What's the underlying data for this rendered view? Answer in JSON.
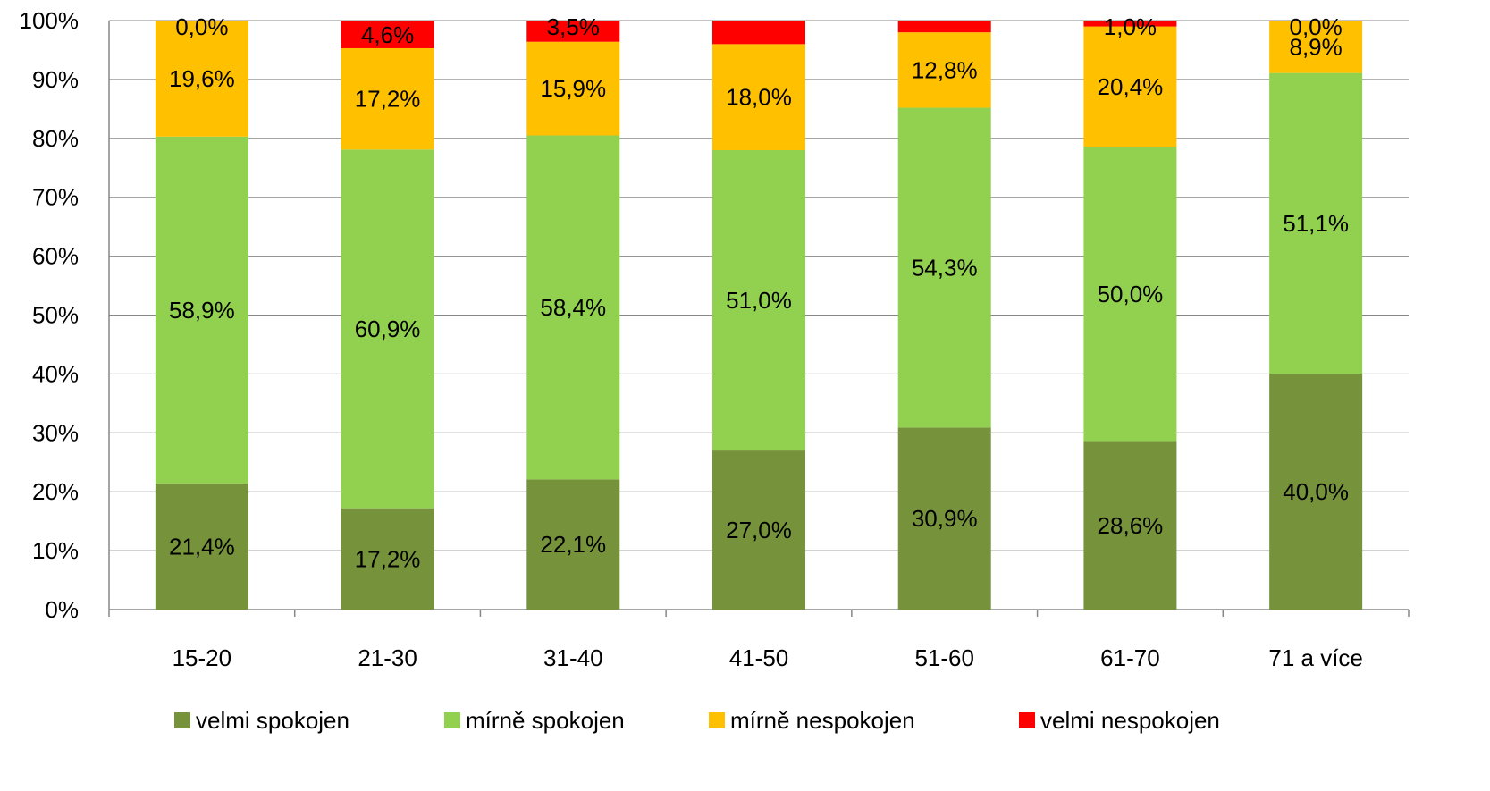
{
  "chart_data": {
    "type": "bar",
    "stacked": true,
    "categories": [
      "15-20",
      "21-30",
      "31-40",
      "41-50",
      "51-60",
      "61-70",
      "71 a více"
    ],
    "series": [
      {
        "name": "velmi spokojen",
        "color": "#76933C",
        "values": [
          21.4,
          17.2,
          22.1,
          27.0,
          30.9,
          28.6,
          40.0
        ],
        "labels": [
          "21,4%",
          "17,2%",
          "22,1%",
          "27,0%",
          "30,9%",
          "28,6%",
          "40,0%"
        ]
      },
      {
        "name": "mírně spokojen",
        "color": "#92D050",
        "values": [
          58.9,
          60.9,
          58.4,
          51.0,
          54.3,
          50.0,
          51.1
        ],
        "labels": [
          "58,9%",
          "60,9%",
          "58,4%",
          "51,0%",
          "54,3%",
          "50,0%",
          "51,1%"
        ]
      },
      {
        "name": "mírně nespokojen",
        "color": "#FFC000",
        "values": [
          19.6,
          17.2,
          15.9,
          18.0,
          12.8,
          20.4,
          8.9
        ],
        "labels": [
          "19,6%",
          "17,2%",
          "15,9%",
          "18,0%",
          "12,8%",
          "20,4%",
          "8,9%"
        ]
      },
      {
        "name": "velmi nespokojen",
        "color": "#FF0000",
        "values": [
          0.0,
          4.6,
          3.5,
          4.0,
          2.1,
          1.0,
          0.0
        ],
        "labels": [
          "0,0%",
          "4,6%",
          "3,5%",
          "",
          "",
          "1,0%",
          "0,0%"
        ]
      }
    ],
    "y_ticks": [
      "0%",
      "10%",
      "20%",
      "30%",
      "40%",
      "50%",
      "60%",
      "70%",
      "80%",
      "90%",
      "100%"
    ],
    "ylim": [
      0,
      100
    ],
    "grid": true,
    "legend_position": "bottom",
    "title": "",
    "xlabel": "",
    "ylabel": ""
  }
}
